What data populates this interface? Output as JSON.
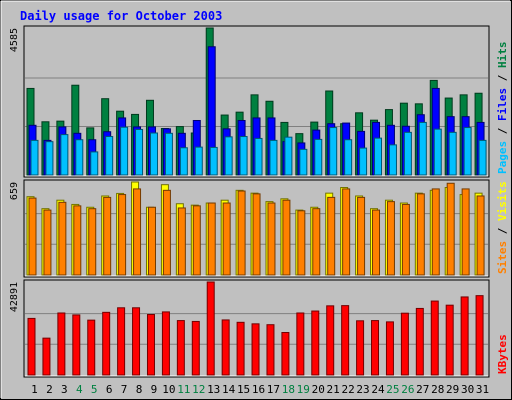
{
  "chart_data": [
    {
      "type": "bar",
      "title": "Daily usage for October 2003",
      "categories": [
        "1",
        "2",
        "3",
        "4",
        "5",
        "6",
        "7",
        "8",
        "9",
        "10",
        "11",
        "12",
        "13",
        "14",
        "15",
        "16",
        "17",
        "18",
        "19",
        "20",
        "21",
        "22",
        "23",
        "24",
        "25",
        "26",
        "27",
        "28",
        "29",
        "30",
        "31"
      ],
      "weekend_days": [
        "4",
        "5",
        "11",
        "12",
        "18",
        "19",
        "25",
        "26"
      ],
      "ymax_label": "4585",
      "ylim": [
        0,
        4585
      ],
      "side_labels": [
        "Pages",
        "/",
        "Files",
        "/",
        "Hits"
      ],
      "series": [
        {
          "name": "Hits",
          "color": "#008040",
          "values": [
            2700,
            1660,
            1680,
            2800,
            1470,
            2380,
            1990,
            1890,
            2330,
            1450,
            1510,
            1310,
            4585,
            1870,
            1960,
            2500,
            2300,
            1640,
            1290,
            1650,
            2620,
            1600,
            1940,
            1710,
            2040,
            2240,
            2220,
            2950,
            2400,
            2500,
            2550
          ]
        },
        {
          "name": "Files",
          "color": "#0000ff",
          "values": [
            1550,
            1080,
            1500,
            1300,
            1100,
            1350,
            1780,
            1500,
            1500,
            1440,
            1300,
            1700,
            4000,
            1440,
            1700,
            1780,
            1780,
            1040,
            1000,
            1400,
            1600,
            1620,
            1360,
            1640,
            1550,
            1520,
            1880,
            2700,
            1820,
            1820,
            1640
          ]
        },
        {
          "name": "Pages",
          "color": "#00c0ff",
          "values": [
            1080,
            1040,
            1260,
            1100,
            720,
            1200,
            1490,
            1420,
            1310,
            1300,
            850,
            870,
            860,
            1190,
            1200,
            1140,
            1080,
            1180,
            800,
            1110,
            1480,
            1100,
            840,
            1150,
            940,
            1330,
            1640,
            1430,
            1330,
            1480,
            1080
          ]
        }
      ]
    },
    {
      "type": "bar",
      "categories": [
        "1",
        "2",
        "3",
        "4",
        "5",
        "6",
        "7",
        "8",
        "9",
        "10",
        "11",
        "12",
        "13",
        "14",
        "15",
        "16",
        "17",
        "18",
        "19",
        "20",
        "21",
        "22",
        "23",
        "24",
        "25",
        "26",
        "27",
        "28",
        "29",
        "30",
        "31"
      ],
      "ymax_label": "659",
      "ylim": [
        0,
        659
      ],
      "side_labels": [
        "Sites",
        "/",
        "Visits"
      ],
      "series": [
        {
          "name": "Visits",
          "color": "#ffff00",
          "values": [
            555,
            470,
            530,
            500,
            480,
            560,
            578,
            659,
            480,
            640,
            505,
            495,
            510,
            530,
            600,
            580,
            520,
            540,
            460,
            480,
            580,
            620,
            560,
            470,
            530,
            510,
            580,
            600,
            620,
            570,
            580
          ]
        },
        {
          "name": "Sites",
          "color": "#ff8000",
          "values": [
            545,
            460,
            515,
            490,
            470,
            550,
            570,
            610,
            480,
            600,
            475,
            490,
            510,
            510,
            595,
            575,
            510,
            530,
            455,
            470,
            550,
            610,
            550,
            460,
            520,
            500,
            575,
            610,
            650,
            610,
            560
          ]
        }
      ]
    },
    {
      "type": "bar",
      "categories": [
        "1",
        "2",
        "3",
        "4",
        "5",
        "6",
        "7",
        "8",
        "9",
        "10",
        "11",
        "12",
        "13",
        "14",
        "15",
        "16",
        "17",
        "18",
        "19",
        "20",
        "21",
        "22",
        "23",
        "24",
        "25",
        "26",
        "27",
        "28",
        "29",
        "30",
        "31"
      ],
      "ymax_label": "42891",
      "ylim": [
        0,
        42891
      ],
      "side_labels": [
        "KBytes"
      ],
      "series": [
        {
          "name": "KBytes",
          "color": "#ff0000",
          "values": [
            26100,
            17000,
            28600,
            27700,
            25300,
            28900,
            31000,
            31000,
            27900,
            29100,
            25100,
            24700,
            42891,
            25400,
            24300,
            23600,
            23200,
            19600,
            28600,
            29500,
            31900,
            32000,
            25000,
            25100,
            24500,
            28500,
            30700,
            34100,
            32200,
            36000,
            36600
          ]
        }
      ]
    }
  ],
  "colors": {
    "border": "#000080",
    "title": "#0000ff",
    "plot_bg": "#c0c0c0",
    "grid": "#808080",
    "weekend_label": "#008040",
    "weekday_label": "#000000",
    "ymax_label": "#000000",
    "separator_label": "#000000"
  }
}
